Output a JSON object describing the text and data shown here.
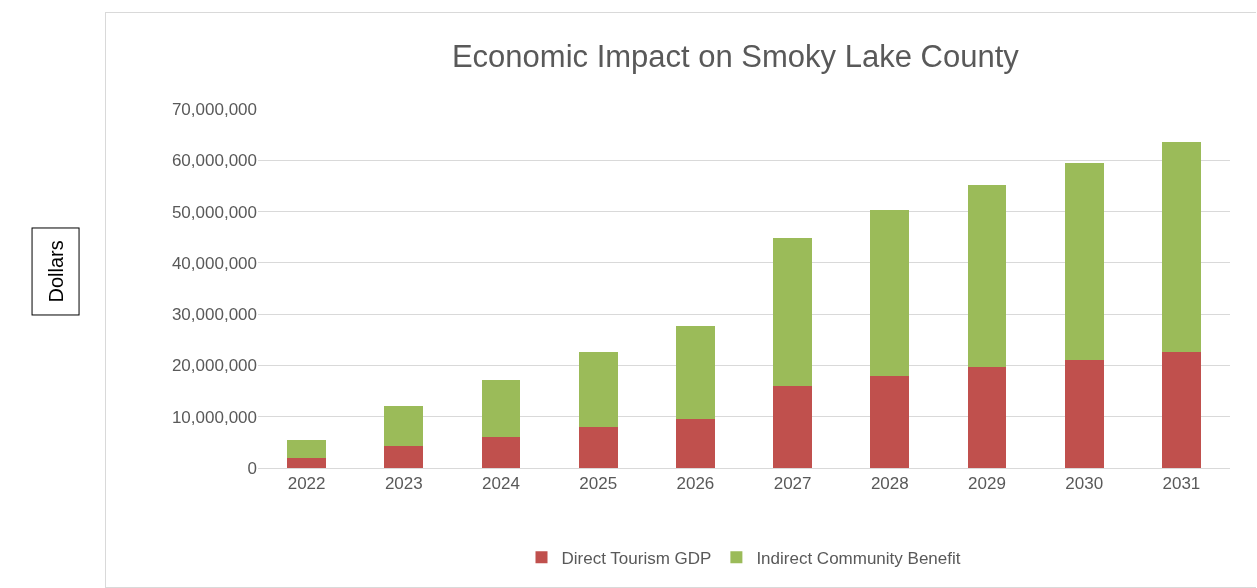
{
  "chart_data": {
    "type": "bar",
    "title": "Economic Impact on Smoky Lake County",
    "annotations": [
      "Dollars"
    ],
    "categories": [
      "2022",
      "2023",
      "2024",
      "2025",
      "2026",
      "2027",
      "2028",
      "2029",
      "2030",
      "2031"
    ],
    "stacked": true,
    "series": [
      {
        "name": "Direct Tourism GDP",
        "color": "#c0504d",
        "values": [
          1900000,
          4200000,
          6000000,
          7900000,
          9600000,
          16000000,
          17900000,
          19700000,
          21000000,
          22600000
        ]
      },
      {
        "name": "Indirect Community Benefit",
        "color": "#9bbb59",
        "values": [
          3500000,
          7800000,
          11200000,
          14700000,
          18000000,
          28900000,
          32400000,
          35400000,
          38400000,
          41000000
        ]
      }
    ],
    "ylim": [
      0,
      70000000
    ],
    "yticks": [
      {
        "value": 0,
        "label": "0"
      },
      {
        "value": 10000000,
        "label": "10,000,000"
      },
      {
        "value": 20000000,
        "label": "20,000,000"
      },
      {
        "value": 30000000,
        "label": "30,000,000"
      },
      {
        "value": 40000000,
        "label": "40,000,000"
      },
      {
        "value": 50000000,
        "label": "50,000,000"
      },
      {
        "value": 60000000,
        "label": "60,000,000"
      },
      {
        "value": 70000000,
        "label": "70,000,000"
      }
    ],
    "grid": "y",
    "legend": "bottom"
  }
}
